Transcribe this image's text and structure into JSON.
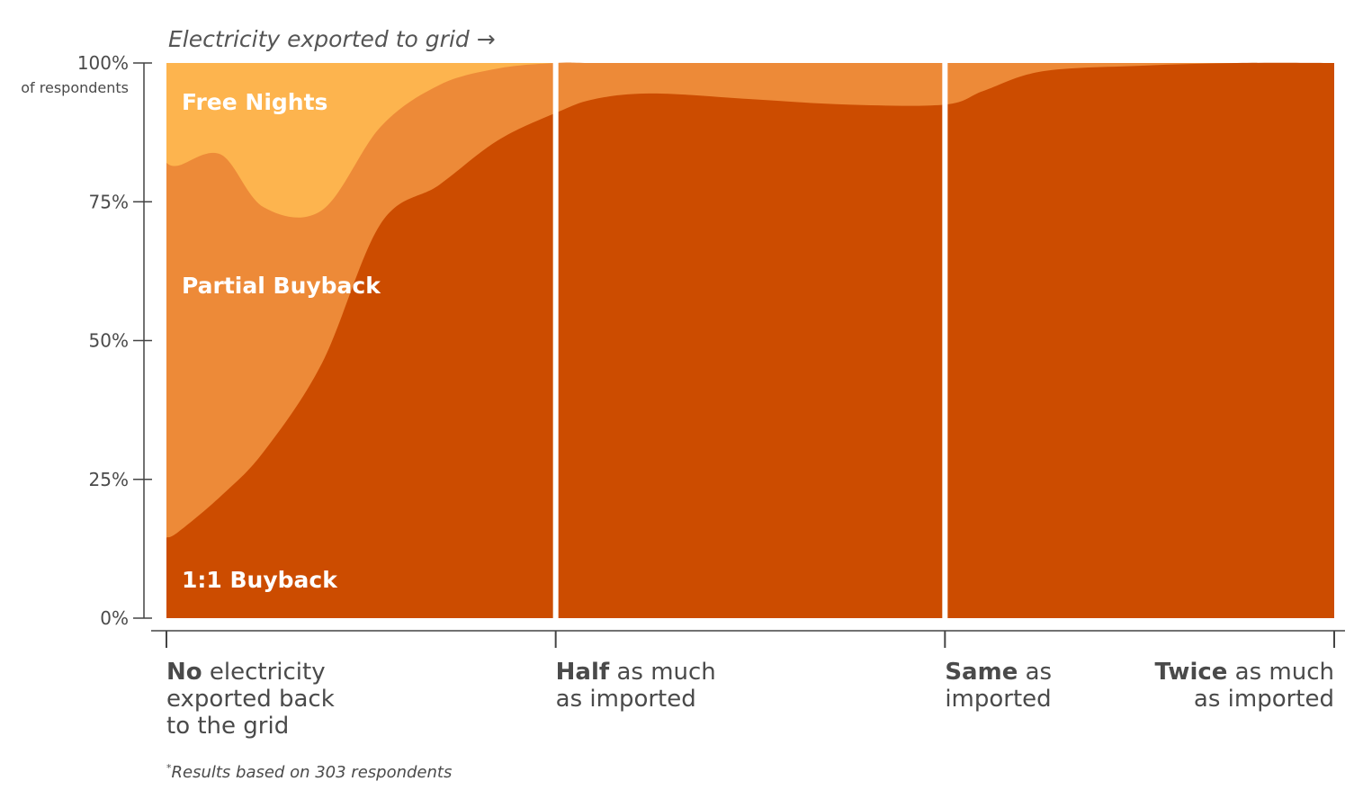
{
  "chart_data": {
    "type": "area",
    "stacked": true,
    "normalized": true,
    "title": "Electricity exported to grid →",
    "ylabel_unit": "of respondents",
    "y_ticks": [
      "100%",
      "75%",
      "50%",
      "25%",
      "0%"
    ],
    "ylim": [
      0,
      100
    ],
    "grid": false,
    "x_domain": [
      0,
      3
    ],
    "categories": [
      {
        "x": 0,
        "bold": "No",
        "rest": " electricity",
        "extra_lines": [
          "exported back",
          "to the grid"
        ],
        "align": "start"
      },
      {
        "x": 1,
        "bold": "Half",
        "rest": " as much",
        "extra_lines": [
          "as imported"
        ],
        "align": "start"
      },
      {
        "x": 2,
        "bold": "Same",
        "rest": " as",
        "extra_lines": [
          "imported"
        ],
        "align": "start"
      },
      {
        "x": 3,
        "bold": "Twice",
        "rest": " as much",
        "extra_lines": [
          "as imported"
        ],
        "align": "end"
      }
    ],
    "x": [
      0,
      0.03,
      0.14,
      0.25,
      0.4,
      0.55,
      0.7,
      0.85,
      1.0,
      1.1,
      1.25,
      1.5,
      1.75,
      2.0,
      2.1,
      2.25,
      2.5,
      2.75,
      3.0
    ],
    "series": [
      {
        "name": "1:1 Buyback",
        "color": "#cc4c00",
        "values": [
          14.5,
          15.5,
          22,
          30,
          46,
          71,
          78,
          86,
          91,
          93.5,
          94.5,
          93.5,
          92.5,
          92.5,
          95,
          98.5,
          99.5,
          100,
          100
        ]
      },
      {
        "name": "Partial Buyback",
        "color": "#ed8a38",
        "values": [
          67.5,
          66,
          61.5,
          44,
          27.5,
          17.5,
          18,
          13,
          9,
          6.5,
          5.5,
          6.5,
          7.5,
          7.5,
          5,
          1.5,
          0.5,
          0,
          0
        ]
      },
      {
        "name": "Free Nights",
        "color": "#fdb44e",
        "values": [
          18,
          18.5,
          16.5,
          26,
          26.5,
          11.5,
          4,
          1,
          0,
          0,
          0,
          0,
          0,
          0,
          0,
          0,
          0,
          0,
          0
        ]
      }
    ],
    "legend_position": "inline-left",
    "dividers_at": [
      1,
      2
    ],
    "footnote_mark": "*",
    "footnote": "Results based on 303 respondents"
  }
}
